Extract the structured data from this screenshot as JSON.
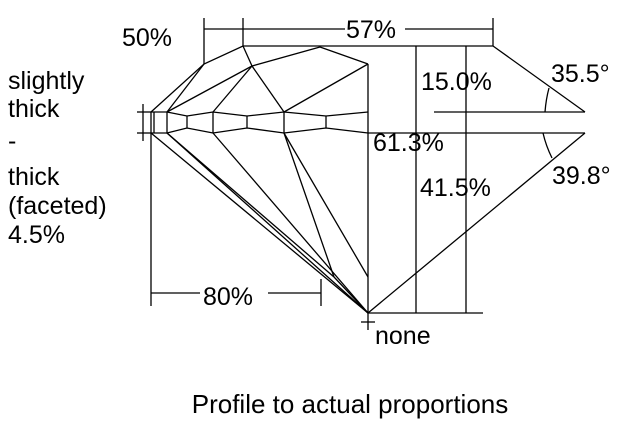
{
  "labels": {
    "crown_star": "50%",
    "table": "57%",
    "crown_height": "15.0%",
    "crown_angle": "35.5°",
    "total_depth": "61.3%",
    "pavilion_depth": "41.5%",
    "pavilion_angle": "39.8°",
    "lower_half": "80%",
    "culet": "none",
    "girdle": [
      "slightly",
      "thick",
      "-",
      "thick",
      "(faceted)",
      "4.5%"
    ]
  },
  "caption": "Profile to actual proportions"
}
